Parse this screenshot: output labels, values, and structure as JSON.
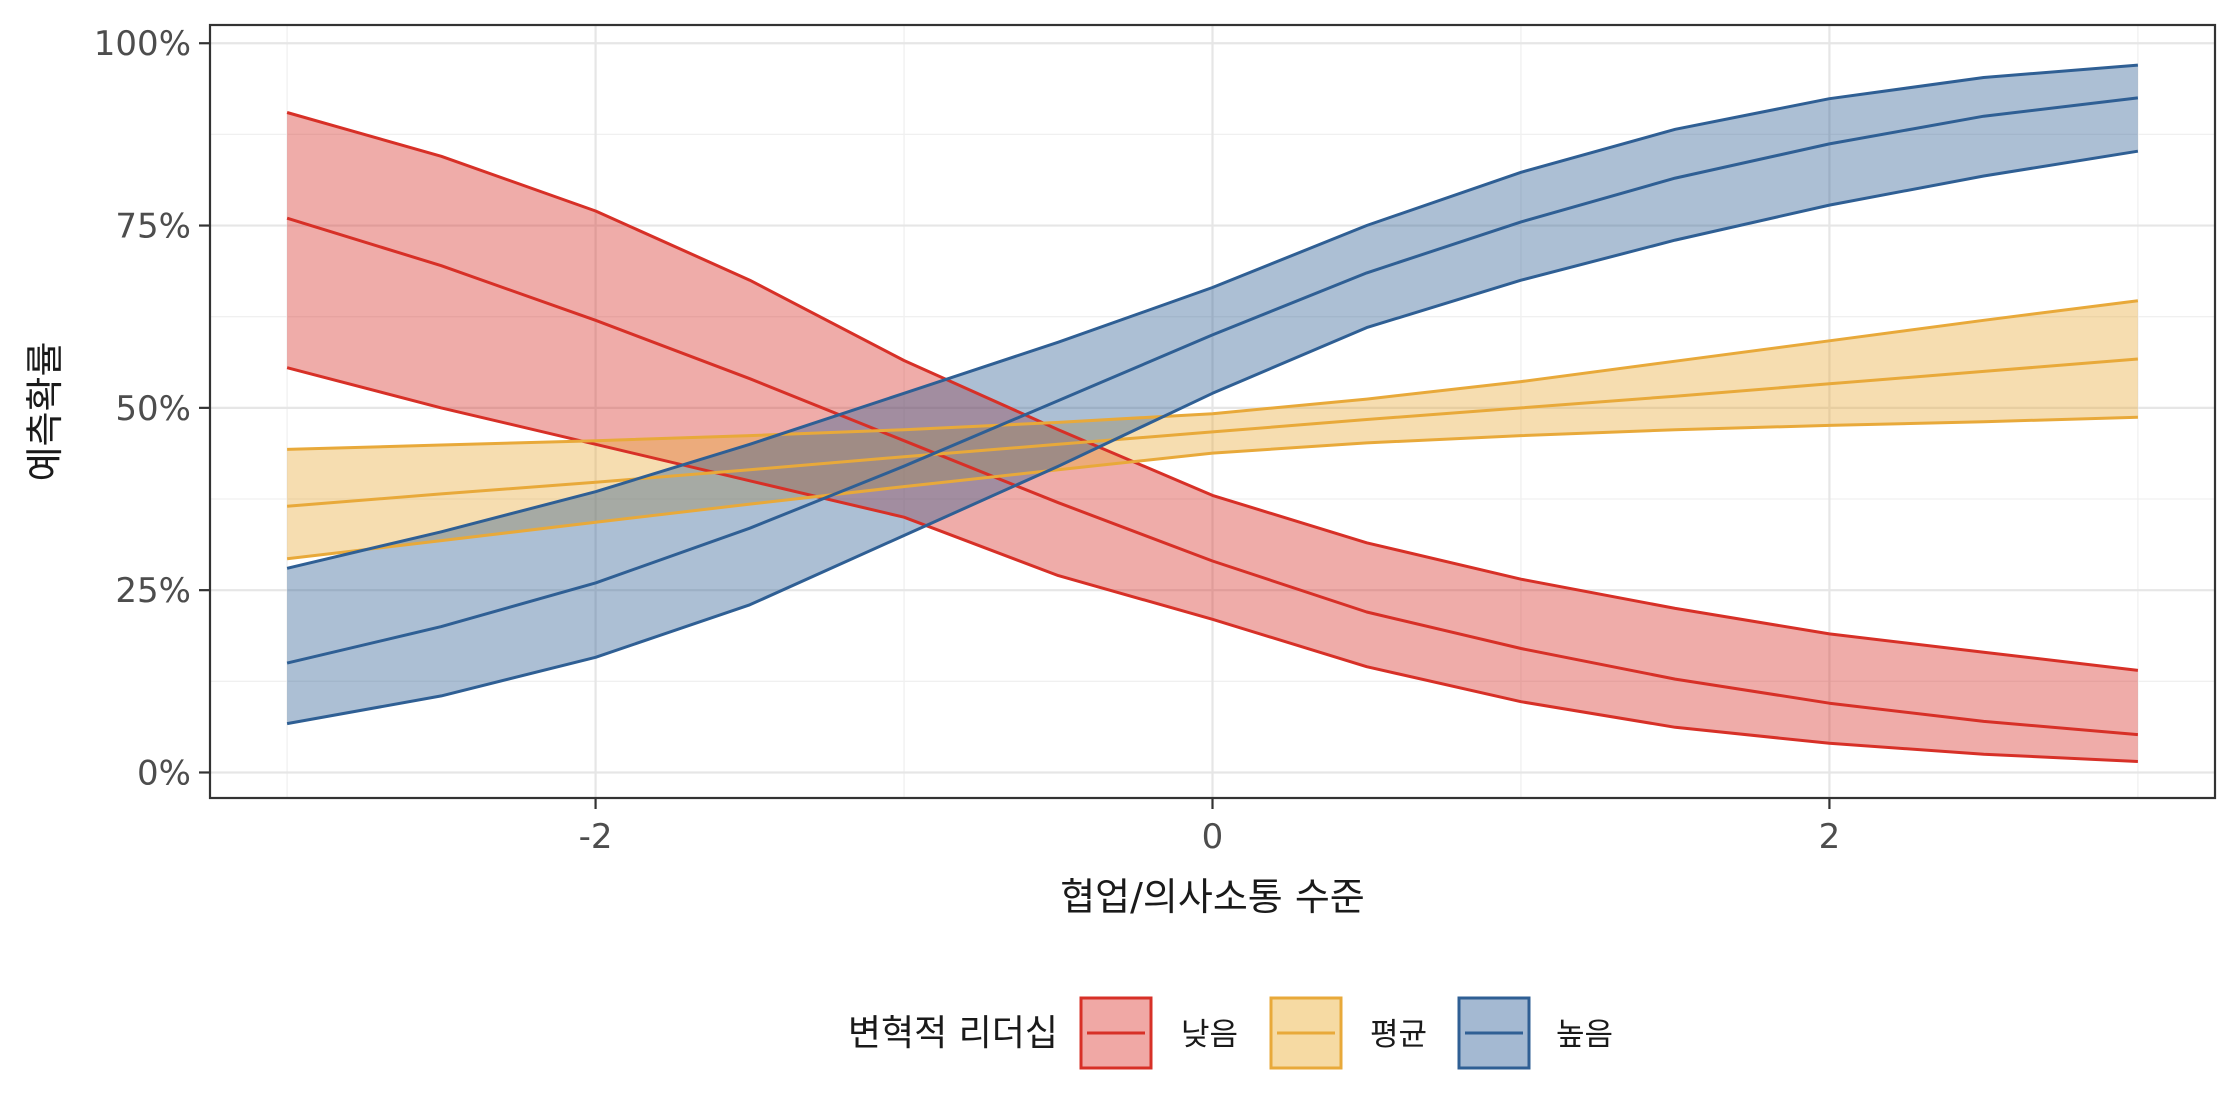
{
  "chart_data": {
    "type": "line",
    "xlabel": "협업/의사소통 수준",
    "ylabel": "예측확률",
    "xlim": [
      -3.25,
      3.25
    ],
    "ylim": [
      -0.035,
      1.025
    ],
    "x_ticks": [
      -2,
      0,
      2
    ],
    "x_tick_labels": [
      "-2",
      "0",
      "2"
    ],
    "y_ticks": [
      0,
      0.25,
      0.5,
      0.75,
      1.0
    ],
    "y_tick_labels": [
      "0%",
      "25%",
      "50%",
      "75%",
      "100%"
    ],
    "grid": true,
    "legend_position": "bottom",
    "legend_title": "변혁적 리더십",
    "x": [
      -3,
      -2.5,
      -2,
      -1.5,
      -1,
      -0.5,
      0,
      0.5,
      1,
      1.5,
      2,
      2.5,
      3
    ],
    "series": [
      {
        "name": "낮음",
        "color": "#d73027",
        "fill": "#f0a8a5",
        "fit": [
          0.76,
          0.695,
          0.62,
          0.54,
          0.455,
          0.37,
          0.29,
          0.22,
          0.17,
          0.128,
          0.095,
          0.07,
          0.052
        ],
        "lower": [
          0.555,
          0.5,
          0.45,
          0.4,
          0.35,
          0.27,
          0.21,
          0.145,
          0.097,
          0.062,
          0.04,
          0.025,
          0.015
        ],
        "upper": [
          0.905,
          0.845,
          0.77,
          0.675,
          0.565,
          0.47,
          0.38,
          0.315,
          0.265,
          0.225,
          0.19,
          0.165,
          0.14
        ]
      },
      {
        "name": "평균",
        "color": "#e8a93a",
        "fill": "#f6daa3",
        "fit": [
          0.365,
          0.382,
          0.398,
          0.415,
          0.433,
          0.45,
          0.467,
          0.484,
          0.5,
          0.516,
          0.533,
          0.55,
          0.567
        ],
        "lower": [
          0.293,
          0.318,
          0.343,
          0.368,
          0.392,
          0.415,
          0.438,
          0.452,
          0.462,
          0.47,
          0.476,
          0.481,
          0.487
        ],
        "upper": [
          0.443,
          0.449,
          0.455,
          0.462,
          0.47,
          0.48,
          0.492,
          0.512,
          0.536,
          0.564,
          0.592,
          0.62,
          0.647
        ]
      },
      {
        "name": "높음",
        "color": "#2f5f94",
        "fill": "#a4b9d2",
        "fit": [
          0.15,
          0.2,
          0.26,
          0.335,
          0.42,
          0.51,
          0.6,
          0.685,
          0.755,
          0.815,
          0.862,
          0.9,
          0.925
        ],
        "lower": [
          0.067,
          0.105,
          0.158,
          0.23,
          0.325,
          0.42,
          0.52,
          0.61,
          0.675,
          0.73,
          0.778,
          0.818,
          0.852
        ],
        "upper": [
          0.28,
          0.33,
          0.385,
          0.45,
          0.52,
          0.59,
          0.665,
          0.75,
          0.823,
          0.882,
          0.924,
          0.953,
          0.97
        ]
      }
    ]
  }
}
